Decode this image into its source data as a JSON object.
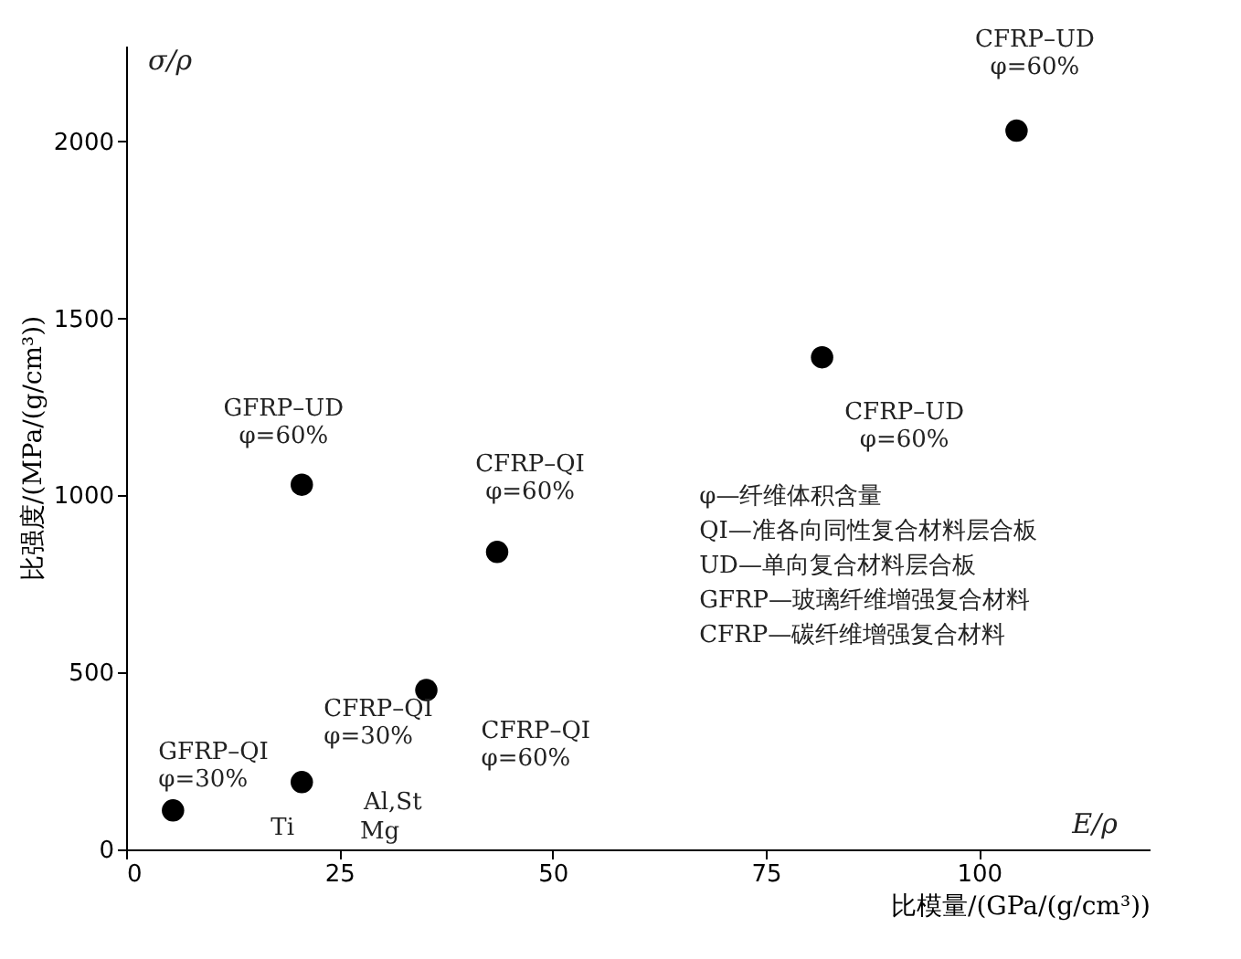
{
  "chart_data": {
    "type": "scatter",
    "xlabel": "比模量/(GPa/(g/cm³))",
    "ylabel": "比强度/(MPa/(g/cm³))",
    "xlim": [
      0,
      120
    ],
    "ylim": [
      0,
      2270
    ],
    "xticks": [
      0,
      25,
      50,
      75,
      100
    ],
    "yticks": [
      0,
      500,
      1000,
      1500,
      2000
    ],
    "grid": false,
    "marker": "circle",
    "series": [
      {
        "color": "#000000",
        "x": [
          5.5,
          20.6,
          20.6,
          35.2,
          43.5,
          81.6,
          104.4
        ],
        "values": [
          110,
          1030,
          190,
          450,
          840,
          1390,
          2030
        ]
      }
    ],
    "annotations": [
      "σ/ρ",
      "E/ρ",
      "φ—纤维体积含量\nQI—准各向同性复合材料层合板\nUD—单向复合材料层合板\nGFRP—玻璃纤维增强复合材料\nCFRP—碳纤维增强复合材料",
      {
        "text": "GFRP–QI\nφ=30%",
        "x": 5.5,
        "y": 110
      },
      {
        "text": "GFRP–UD\nφ=60%",
        "x": 20.6,
        "y": 1030
      },
      {
        "text": "CFRP–QI\nφ=30%",
        "x": 20.6,
        "y": 190
      },
      {
        "text": "CFRP–QI\nφ=60%",
        "x": 35.2,
        "y": 450
      },
      {
        "text": "CFRP–QI\nφ=60%",
        "x": 43.5,
        "y": 840
      },
      {
        "text": "CFRP–UD\nφ=60%",
        "x": 81.6,
        "y": 1390
      },
      {
        "text": "CFRP–UD\nφ=60%",
        "x": 104.4,
        "y": 2030
      },
      "Ti",
      "Al,St",
      "Mg"
    ]
  }
}
